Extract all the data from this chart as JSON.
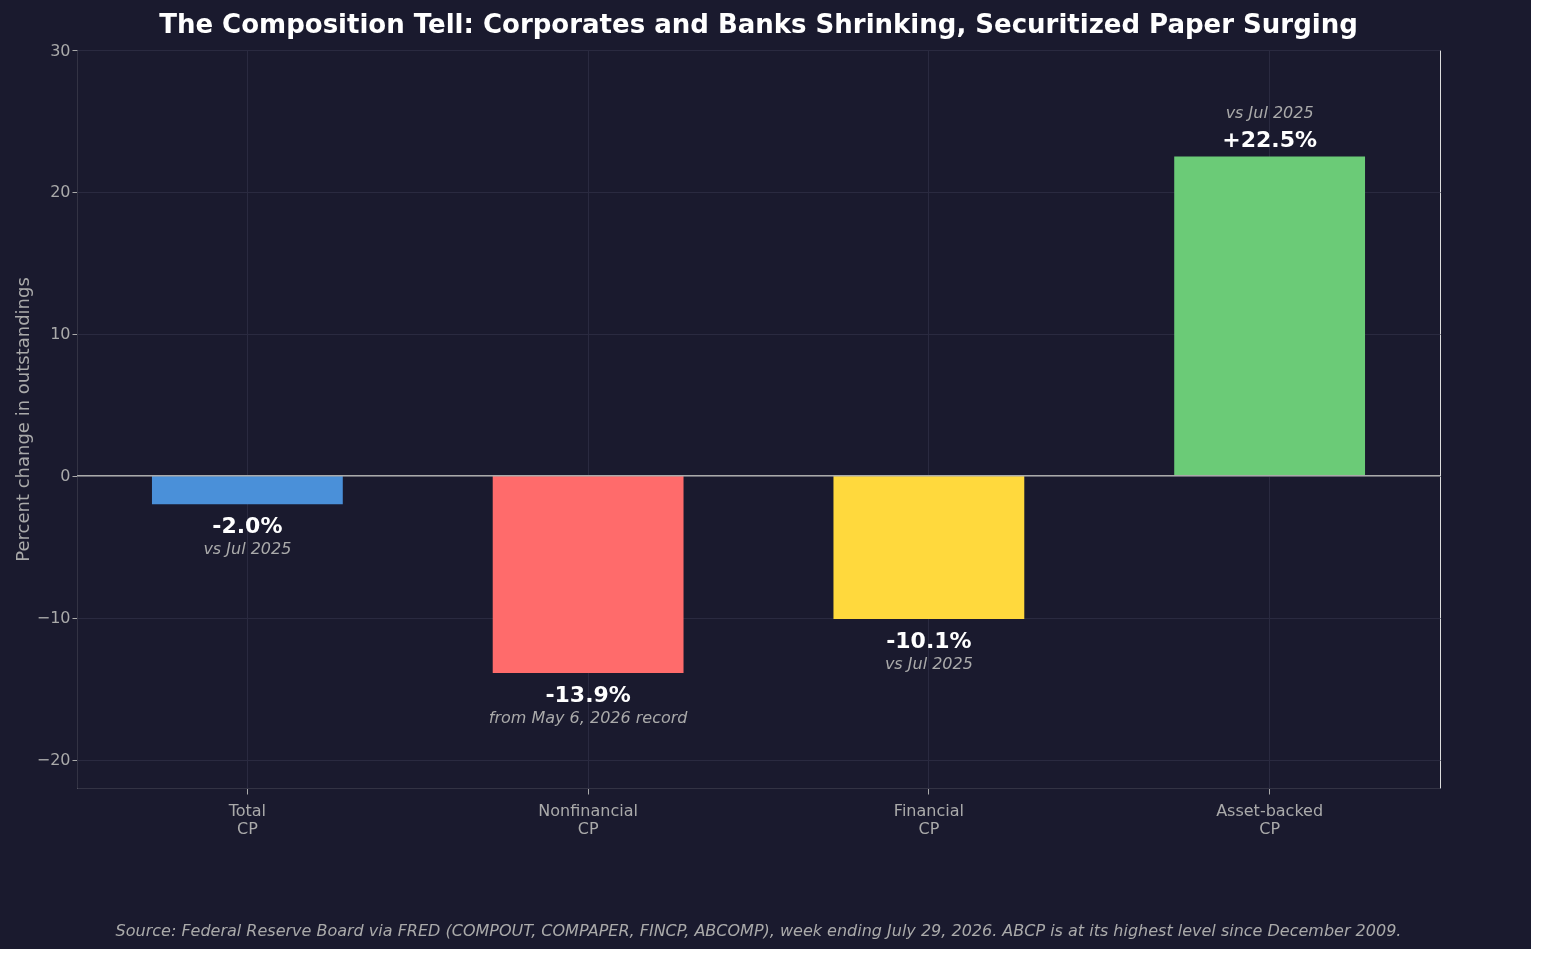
{
  "chart_data": {
    "type": "bar",
    "title": "The Composition Tell: Corporates and Banks Shrinking, Securitized Paper Surging",
    "ylabel": "Percent change in outstandings",
    "categories": [
      "Total\nCP",
      "Nonfinancial\nCP",
      "Financial\nCP",
      "Asset-backed\nCP"
    ],
    "values": [
      -2.0,
      -13.9,
      -10.1,
      22.5
    ],
    "colors": [
      "#4a90d9",
      "#ff6b6b",
      "#ffd93d",
      "#6bcb77"
    ],
    "value_labels": [
      "-2.0%",
      "-13.9%",
      "-10.1%",
      "+22.5%"
    ],
    "ylim": [
      -22,
      30
    ],
    "yticks": [
      -20,
      -10,
      0,
      10,
      20,
      30
    ],
    "grid": true,
    "ref_lines": [
      {
        "axis": "y",
        "value": 0,
        "color": "#aaaaaa"
      }
    ],
    "annotations": [
      {
        "text": "vs Jul 2025",
        "x": "Total\nCP",
        "y": -2.0
      },
      {
        "text": "from May 6, 2026 record",
        "x": "Nonfinancial\nCP",
        "y": -13.9
      },
      {
        "text": "vs Jul 2025",
        "x": "Financial\nCP",
        "y": -10.1
      },
      {
        "text": "vs Jul 2025",
        "x": "Asset-backed\nCP",
        "y": 22.5
      },
      "Source: Federal Reserve Board via FRED (COMPOUT, COMPAPER, FINCP, ABCOMP), week ending July 29, 2026. ABCP is at its highest level since December 2009."
    ]
  }
}
